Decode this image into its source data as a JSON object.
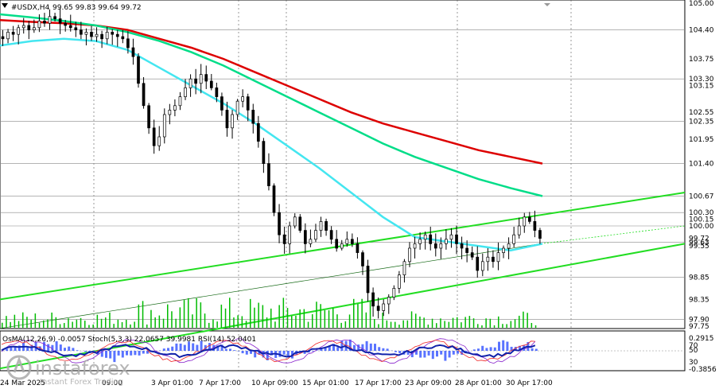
{
  "header": {
    "symbol": "#USDX,H4",
    "ohlc": "99.65 99.83 99.64 99.72"
  },
  "indicator_header": "OsMA(12,26,9) -0.0057  Stoch(5,3,3) 22.0657 39.9981  RSI(14) 52.0401",
  "watermark": {
    "brand": "instaforex",
    "tagline": "Instant Forex Trading"
  },
  "colors": {
    "ema200": "#dd0000",
    "ema144": "#00dd88",
    "ema50": "#44e6f0",
    "channel": "#22dd22",
    "candles": "#000000",
    "volume": "#00bb00",
    "osma": "#2244ff",
    "stoch_main": "#8822cc",
    "stoch_signal": "#ee2222",
    "rsi": "#1122aa",
    "grid": "#888888"
  },
  "chart_data": {
    "type": "candlestick",
    "title": "#USDX,H4",
    "ylim": [
      97.75,
      105.0
    ],
    "price_levels": [
      {
        "label": "105.00",
        "value": 105.0
      },
      {
        "label": "104.40",
        "value": 104.4,
        "line": true
      },
      {
        "label": "103.75",
        "value": 103.75
      },
      {
        "label": "103.30",
        "value": 103.3,
        "line": true
      },
      {
        "label": "103.15",
        "value": 103.15
      },
      {
        "label": "102.55",
        "value": 102.55
      },
      {
        "label": "102.35",
        "value": 102.35,
        "line": true
      },
      {
        "label": "101.95",
        "value": 101.95
      },
      {
        "label": "101.40",
        "value": 101.4,
        "line": true
      },
      {
        "label": "100.67",
        "value": 100.67,
        "line": true
      },
      {
        "label": "100.30",
        "value": 100.3,
        "line": true
      },
      {
        "label": "100.15",
        "value": 100.15
      },
      {
        "label": "100.00",
        "value": 100.0,
        "line": true
      },
      {
        "label": "99.72",
        "value": 99.72
      },
      {
        "label": "99.63",
        "value": 99.63,
        "line": true
      },
      {
        "label": "99.55",
        "value": 99.55
      },
      {
        "label": "98.85",
        "value": 98.85,
        "line": true
      },
      {
        "label": "98.35",
        "value": 98.35
      },
      {
        "label": "97.90",
        "value": 97.9,
        "line": true
      },
      {
        "label": "97.75",
        "value": 97.75
      }
    ],
    "x_labels": [
      "24 Mar 2025",
      "09:00",
      "3 Apr 01:00",
      "7 Apr 17:00",
      "10 Apr 09:00",
      "15 Apr 01:00",
      "17 Apr 17:00",
      "23 Apr 09:00",
      "28 Apr 01:00",
      "30 Apr 17:00"
    ],
    "close_series": [
      104.2,
      104.35,
      104.3,
      104.45,
      104.5,
      104.4,
      104.45,
      104.6,
      104.55,
      104.7,
      104.65,
      104.55,
      104.5,
      104.45,
      104.4,
      104.3,
      104.35,
      104.25,
      104.3,
      104.2,
      104.35,
      104.3,
      104.25,
      104.2,
      104.0,
      103.8,
      103.2,
      102.7,
      102.2,
      101.8,
      102.0,
      102.5,
      102.6,
      102.7,
      102.9,
      103.1,
      103.3,
      103.2,
      103.4,
      103.25,
      103.1,
      102.9,
      102.6,
      102.2,
      102.5,
      102.8,
      102.9,
      102.6,
      102.3,
      101.9,
      101.4,
      100.9,
      100.3,
      99.8,
      99.6,
      100.0,
      100.2,
      99.9,
      99.6,
      99.7,
      99.9,
      100.1,
      99.9,
      99.7,
      99.5,
      99.6,
      99.7,
      99.6,
      99.4,
      99.1,
      98.5,
      98.2,
      98.1,
      98.25,
      98.4,
      98.6,
      98.9,
      99.2,
      99.5,
      99.6,
      99.7,
      99.8,
      99.6,
      99.5,
      99.6,
      99.7,
      99.8,
      99.6,
      99.5,
      99.4,
      99.3,
      99.0,
      99.2,
      99.3,
      99.2,
      99.4,
      99.5,
      99.6,
      99.8,
      100.0,
      100.2,
      100.1,
      99.9,
      99.72
    ],
    "ema_lines": [
      {
        "name": "EMA 200",
        "values": [
          104.62,
          104.58,
          104.55,
          104.5,
          104.4,
          104.2,
          104.0,
          103.75,
          103.45,
          103.15,
          102.85,
          102.55,
          102.3,
          102.1,
          101.9,
          101.7,
          101.55,
          101.4
        ]
      },
      {
        "name": "EMA 144",
        "values": [
          104.75,
          104.68,
          104.6,
          104.5,
          104.35,
          104.15,
          103.9,
          103.6,
          103.25,
          102.9,
          102.55,
          102.2,
          101.85,
          101.55,
          101.3,
          101.05,
          100.85,
          100.67
        ]
      },
      {
        "name": "EMA 50",
        "values": [
          104.05,
          104.15,
          104.2,
          104.15,
          103.95,
          103.55,
          103.15,
          102.75,
          102.3,
          101.8,
          101.3,
          100.75,
          100.2,
          99.75,
          99.65,
          99.55,
          99.45,
          99.6
        ]
      }
    ],
    "channel_lines": [
      {
        "name": "upper",
        "from": 98.35,
        "to": 100.75
      },
      {
        "name": "lower",
        "from": 96.8,
        "to": 99.6
      }
    ],
    "grid": true
  }
}
